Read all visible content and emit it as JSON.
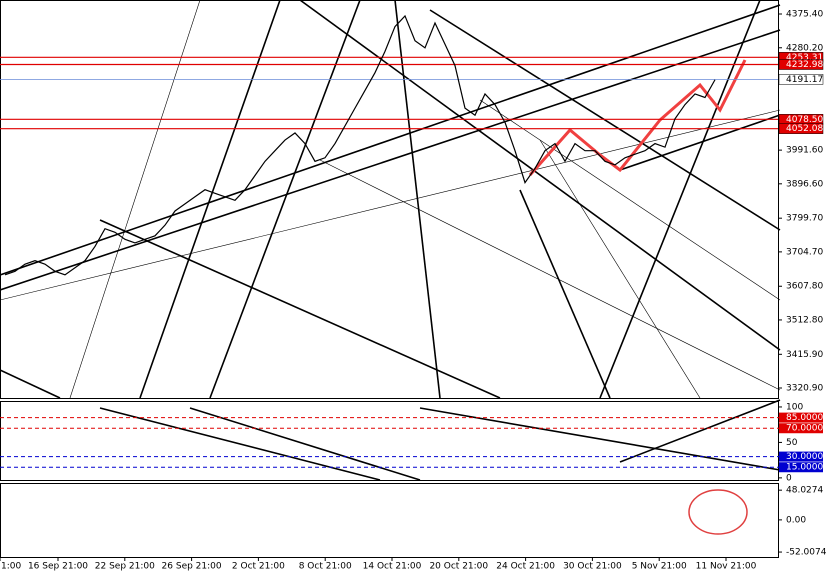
{
  "chart_data": {
    "type": "line",
    "x_labels": [
      "1:00",
      "16 Sep 21:00",
      "22 Sep 21:00",
      "26 Sep 21:00",
      "2 Oct 21:00",
      "8 Oct 21:00",
      "14 Oct 21:00",
      "20 Oct 21:00",
      "24 Oct 21:00",
      "30 Oct 21:00",
      "5 Nov 21:00",
      "11 Nov 21:00"
    ],
    "ylim": [
      3292.7,
      4414.9
    ],
    "yticks": [
      {
        "value": 4375.4,
        "label": "4375.40"
      },
      {
        "value": 4280.2,
        "label": "4280.20"
      },
      {
        "value": 3991.6,
        "label": "3991.60"
      },
      {
        "value": 3896.6,
        "label": "3896.60"
      },
      {
        "value": 3799.7,
        "label": "3799.70"
      },
      {
        "value": 3704.7,
        "label": "3704.70"
      },
      {
        "value": 3607.8,
        "label": "3607.80"
      },
      {
        "value": 3512.8,
        "label": "3512.80"
      },
      {
        "value": 3415.9,
        "label": "3415.90"
      },
      {
        "value": 3320.9,
        "label": "3320.90"
      }
    ],
    "levels": [
      {
        "value": 4253.31,
        "label": "4253.31",
        "color": "#e00000"
      },
      {
        "value": 4232.98,
        "label": "4232.98",
        "color": "#e00000"
      },
      {
        "value": 4191.17,
        "label": "4191.17",
        "color": "#6a8cd8"
      },
      {
        "value": 4078.5,
        "label": "4078.50",
        "color": "#e00000"
      },
      {
        "value": 4052.08,
        "label": "4052.08",
        "color": "#e00000"
      }
    ],
    "series": [
      {
        "color": "#000000",
        "values": [
          3640,
          3650,
          3670,
          3680,
          3670,
          3650,
          3640,
          3660,
          3680,
          3720,
          3770,
          3760,
          3740,
          3730,
          3740,
          3750,
          3780,
          3820,
          3840,
          3860,
          3880,
          3870,
          3860,
          3850,
          3880,
          3920,
          3960,
          3990,
          4020,
          4040,
          4010,
          3960,
          3970,
          4010,
          4060,
          4110,
          4160,
          4210,
          4270,
          4340,
          4370,
          4300,
          4280,
          4350,
          4290,
          4230,
          4110,
          4090,
          4150,
          4120,
          4070,
          3990,
          3900,
          3940,
          3990,
          4010,
          3960,
          4010,
          3990,
          3990,
          3960,
          3950,
          3970,
          3980,
          3990,
          4010,
          4000,
          4080,
          4120,
          4150,
          4140,
          4190
        ]
      }
    ],
    "osc_ylim": [
      -3,
      107
    ],
    "osc_ticks": [
      {
        "value": 100,
        "label": "100",
        "color": "#000000"
      },
      {
        "value": 85,
        "label": "85.0000",
        "color": "#e00000"
      },
      {
        "value": 70,
        "label": "70.0000",
        "color": "#e00000"
      },
      {
        "value": 50,
        "label": "50",
        "color": "#000000"
      },
      {
        "value": 30,
        "label": "30.0000",
        "color": "#0000d0"
      },
      {
        "value": 15,
        "label": "15.0000",
        "color": "#0000d0"
      },
      {
        "value": 0,
        "label": "0",
        "color": "#000000"
      }
    ],
    "macd_ylim": [
      -60,
      58
    ],
    "macd_ticks": [
      {
        "value": 48.0274,
        "label": "48.0274"
      },
      {
        "value": 0,
        "label": "0.00"
      },
      {
        "value": -52.0074,
        "label": "-52.0074"
      }
    ]
  }
}
